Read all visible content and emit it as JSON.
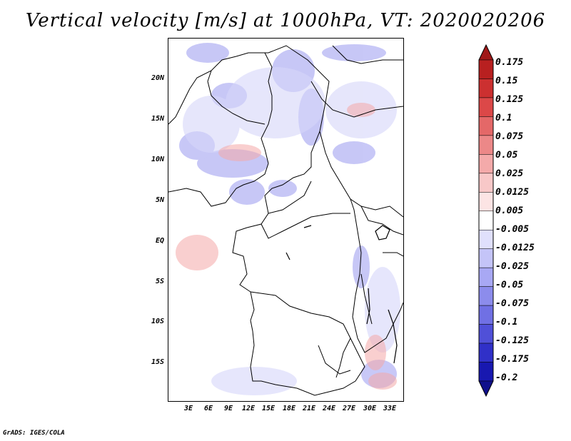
{
  "title": "Vertical velocity [m/s] at 1000hPa, VT: 2020020206",
  "footer": "GrADS: IGES/COLA",
  "map": {
    "lat_labels": [
      "20N",
      "15N",
      "10N",
      "5N",
      "EQ",
      "5S",
      "10S",
      "15S"
    ],
    "lon_labels": [
      "3E",
      "6E",
      "9E",
      "12E",
      "15E",
      "18E",
      "21E",
      "24E",
      "27E",
      "30E",
      "33E"
    ]
  },
  "colorbar": {
    "labels": [
      "0.175",
      "0.15",
      "0.125",
      "0.1",
      "0.075",
      "0.05",
      "0.025",
      "0.0125",
      "0.005",
      "-0.005",
      "-0.0125",
      "-0.025",
      "-0.05",
      "-0.075",
      "-0.1",
      "-0.125",
      "-0.175",
      "-0.2"
    ],
    "colors": [
      "#a01818",
      "#b82020",
      "#cc3030",
      "#dc4848",
      "#e46868",
      "#ec8888",
      "#f4aaaa",
      "#f8c8c8",
      "#fce4e4",
      "#ffffff",
      "#e0e0fc",
      "#c4c4f8",
      "#a8a8f4",
      "#8c8cec",
      "#7070e4",
      "#5050d8",
      "#3030c8",
      "#1818b0",
      "#10108c"
    ]
  }
}
